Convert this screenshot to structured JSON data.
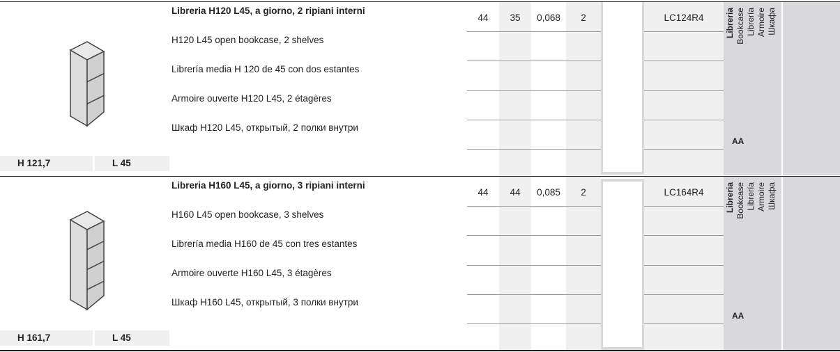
{
  "products": [
    {
      "descriptions": [
        "Libreria H120 L45, a giorno, 2 ripiani interni",
        "H120 L45 open bookcase, 2 shelves",
        "Librería media H 120 de 45 con dos estantes",
        "Armoire ouverte H120 L45, 2 étagères",
        "Шкаф H120 L45, открытый, 2 полки внутри"
      ],
      "values": [
        "44",
        "35",
        "0,068",
        "2"
      ],
      "code": "LC124R4",
      "height_label": "H 121,7",
      "width_label": "L 45",
      "shelves": 2,
      "category_labels": [
        "Libreria",
        "Bookcase",
        "Librería",
        "Armoire",
        "Шкафа"
      ],
      "finish": "AA"
    },
    {
      "descriptions": [
        "Libreria H160 L45, a giorno, 3 ripiani interni",
        "H160 L45 open bookcase, 3 shelves",
        "Librería media H160 de 45 con tres estantes",
        "Armoire ouverte H160 L45, 3 étagères",
        "Шкаф H160 L45, открытый, 3 полки внутри"
      ],
      "values": [
        "44",
        "44",
        "0,085",
        "2"
      ],
      "code": "LC164R4",
      "height_label": "H 161,7",
      "width_label": "L 45",
      "shelves": 3,
      "category_labels": [
        "Libreria",
        "Bookcase",
        "Librería",
        "Armoire",
        "Шкафа"
      ],
      "finish": "AA"
    }
  ]
}
